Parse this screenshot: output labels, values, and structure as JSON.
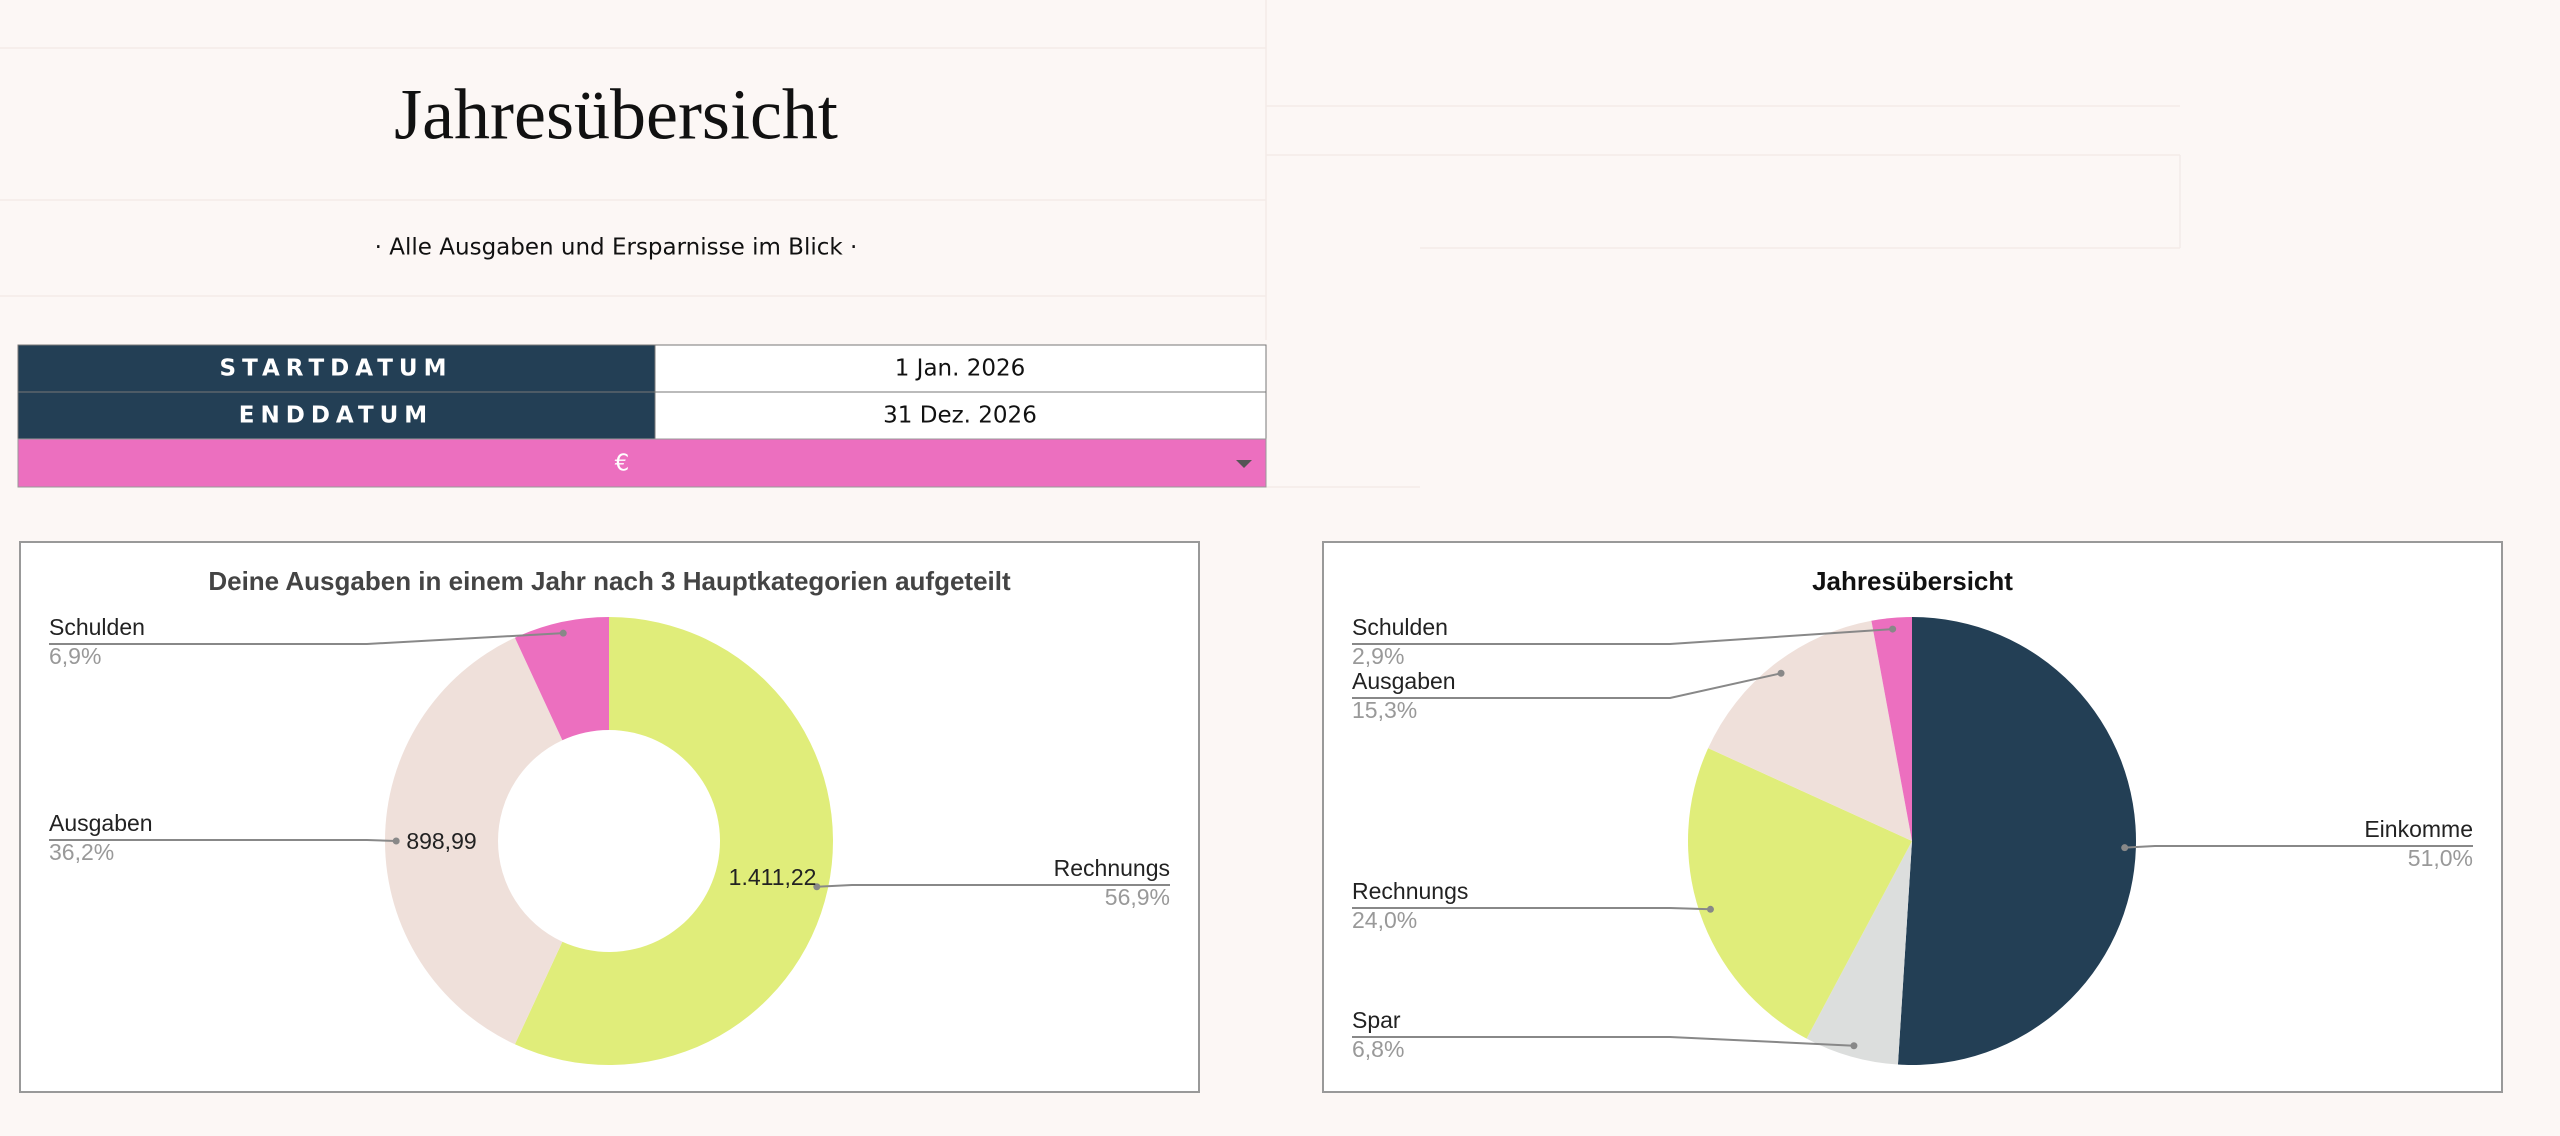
{
  "header": {
    "title": "Jahresübersicht",
    "subtitle": "· Alle Ausgaben und Ersparnisse im Blick ·"
  },
  "table": {
    "rows": [
      [
        "STARTDATUM",
        "1 Jan. 2026"
      ],
      [
        "ENDDATUM",
        "31 Dez. 2026"
      ]
    ],
    "currency": "€"
  },
  "chart_data": [
    {
      "type": "donut",
      "title": "Deine Ausgaben in einem Jahr nach 3 Hauptkategorien aufgeteilt",
      "categories": [
        "Rechnungs",
        "Ausgaben",
        "Schulden"
      ],
      "values": [
        56.9,
        36.2,
        6.9
      ],
      "value_labels": [
        "56,9%",
        "36,2%",
        "6,9%"
      ],
      "amounts": [
        1411.22,
        898.99,
        null
      ],
      "amount_labels": [
        "1.411,22",
        "898,99",
        null
      ],
      "colors": [
        "#e0ed7a",
        "#efe0da",
        "#ec6fbf"
      ]
    },
    {
      "type": "pie",
      "title": "Jahresübersicht",
      "categories": [
        "Einkomme",
        "Spar",
        "Rechnungs",
        "Ausgaben",
        "Schulden"
      ],
      "values": [
        51.0,
        6.8,
        24.0,
        15.3,
        2.9
      ],
      "value_labels": [
        "51,0%",
        "6,8%",
        "24,0%",
        "15,3%",
        "2,9%"
      ],
      "colors": [
        "#233f55",
        "#dcdedd",
        "#e0ed7a",
        "#efe0da",
        "#ec6fbf"
      ]
    }
  ]
}
